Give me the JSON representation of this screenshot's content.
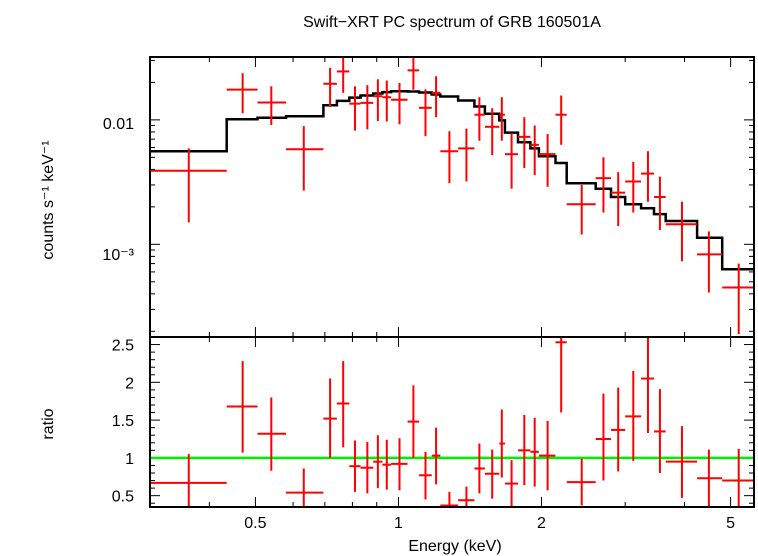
{
  "chart_data": [
    {
      "type": "scatter",
      "title": "Swift−XRT PC spectrum of GRB 160501A",
      "ylabel": "counts s⁻¹ keV⁻¹",
      "xlabel": "",
      "xscale": "log",
      "yscale": "log",
      "xlim": [
        0.3,
        5.6
      ],
      "ylim": [
        0.00018,
        0.032
      ],
      "ytick_labels": [
        "0.01",
        "10⁻³"
      ],
      "series": [
        {
          "kind": "data",
          "color": "#ff0000",
          "points": [
            {
              "x": 0.362,
              "xlo": 0.3,
              "xhi": 0.435,
              "y": 0.0039,
              "ylo": 0.0015,
              "yhi": 0.0059
            },
            {
              "x": 0.47,
              "xlo": 0.435,
              "xhi": 0.505,
              "y": 0.0175,
              "ylo": 0.0113,
              "yhi": 0.0237
            },
            {
              "x": 0.54,
              "xlo": 0.505,
              "xhi": 0.58,
              "y": 0.0138,
              "ylo": 0.0091,
              "yhi": 0.0186
            },
            {
              "x": 0.632,
              "xlo": 0.58,
              "xhi": 0.695,
              "y": 0.0058,
              "ylo": 0.0027,
              "yhi": 0.0089
            },
            {
              "x": 0.718,
              "xlo": 0.695,
              "xhi": 0.742,
              "y": 0.0195,
              "ylo": 0.0127,
              "yhi": 0.0262
            },
            {
              "x": 0.765,
              "xlo": 0.742,
              "xhi": 0.788,
              "y": 0.0245,
              "ylo": 0.0165,
              "yhi": 0.032
            },
            {
              "x": 0.81,
              "xlo": 0.788,
              "xhi": 0.832,
              "y": 0.0135,
              "ylo": 0.0082,
              "yhi": 0.0186
            },
            {
              "x": 0.86,
              "xlo": 0.832,
              "xhi": 0.885,
              "y": 0.0137,
              "ylo": 0.0084,
              "yhi": 0.019
            },
            {
              "x": 0.905,
              "xlo": 0.885,
              "xhi": 0.925,
              "y": 0.0155,
              "ylo": 0.0098,
              "yhi": 0.0212
            },
            {
              "x": 0.945,
              "xlo": 0.925,
              "xhi": 0.965,
              "y": 0.0152,
              "ylo": 0.0097,
              "yhi": 0.0207
            },
            {
              "x": 1.005,
              "xlo": 0.965,
              "xhi": 1.045,
              "y": 0.0145,
              "ylo": 0.0092,
              "yhi": 0.0198
            },
            {
              "x": 1.075,
              "xlo": 1.045,
              "xhi": 1.105,
              "y": 0.025,
              "ylo": 0.0175,
              "yhi": 0.0325
            },
            {
              "x": 1.14,
              "xlo": 1.105,
              "xhi": 1.175,
              "y": 0.0125,
              "ylo": 0.0074,
              "yhi": 0.0176
            },
            {
              "x": 1.2,
              "xlo": 1.175,
              "xhi": 1.225,
              "y": 0.0165,
              "ylo": 0.0105,
              "yhi": 0.0224
            },
            {
              "x": 1.28,
              "xlo": 1.225,
              "xhi": 1.335,
              "y": 0.0056,
              "ylo": 0.0031,
              "yhi": 0.0081
            },
            {
              "x": 1.39,
              "xlo": 1.335,
              "xhi": 1.445,
              "y": 0.0059,
              "ylo": 0.0032,
              "yhi": 0.0085
            },
            {
              "x": 1.48,
              "xlo": 1.445,
              "xhi": 1.52,
              "y": 0.011,
              "ylo": 0.0068,
              "yhi": 0.0152
            },
            {
              "x": 1.575,
              "xlo": 1.52,
              "xhi": 1.63,
              "y": 0.0088,
              "ylo": 0.0052,
              "yhi": 0.0124
            },
            {
              "x": 1.65,
              "xlo": 1.63,
              "xhi": 1.675,
              "y": 0.011,
              "ylo": 0.0068,
              "yhi": 0.0152
            },
            {
              "x": 1.73,
              "xlo": 1.675,
              "xhi": 1.785,
              "y": 0.0053,
              "ylo": 0.0028,
              "yhi": 0.0078
            },
            {
              "x": 1.84,
              "xlo": 1.785,
              "xhi": 1.895,
              "y": 0.0073,
              "ylo": 0.0041,
              "yhi": 0.0105
            },
            {
              "x": 1.935,
              "xlo": 1.895,
              "xhi": 1.975,
              "y": 0.0063,
              "ylo": 0.0036,
              "yhi": 0.009
            },
            {
              "x": 2.06,
              "xlo": 1.975,
              "xhi": 2.14,
              "y": 0.0053,
              "ylo": 0.0029,
              "yhi": 0.0077
            },
            {
              "x": 2.2,
              "xlo": 2.14,
              "xhi": 2.26,
              "y": 0.011,
              "ylo": 0.0063,
              "yhi": 0.0157
            },
            {
              "x": 2.43,
              "xlo": 2.26,
              "xhi": 2.6,
              "y": 0.0021,
              "ylo": 0.0012,
              "yhi": 0.003
            },
            {
              "x": 2.7,
              "xlo": 2.6,
              "xhi": 2.8,
              "y": 0.0034,
              "ylo": 0.0018,
              "yhi": 0.005
            },
            {
              "x": 2.9,
              "xlo": 2.8,
              "xhi": 3.0,
              "y": 0.0026,
              "ylo": 0.0014,
              "yhi": 0.0038
            },
            {
              "x": 3.12,
              "xlo": 3.0,
              "xhi": 3.24,
              "y": 0.0032,
              "ylo": 0.0018,
              "yhi": 0.0046
            },
            {
              "x": 3.35,
              "xlo": 3.24,
              "xhi": 3.45,
              "y": 0.0037,
              "ylo": 0.0022,
              "yhi": 0.0056
            },
            {
              "x": 3.55,
              "xlo": 3.45,
              "xhi": 3.65,
              "y": 0.0024,
              "ylo": 0.0013,
              "yhi": 0.0035
            },
            {
              "x": 3.95,
              "xlo": 3.65,
              "xhi": 4.25,
              "y": 0.00145,
              "ylo": 0.00073,
              "yhi": 0.0022
            },
            {
              "x": 4.5,
              "xlo": 4.25,
              "xhi": 4.8,
              "y": 0.00083,
              "ylo": 0.00041,
              "yhi": 0.00127
            },
            {
              "x": 5.2,
              "xlo": 4.8,
              "xhi": 5.6,
              "y": 0.00045,
              "ylo": 0.00019,
              "yhi": 0.0007
            }
          ]
        },
        {
          "kind": "model",
          "color": "#000000",
          "steps": [
            {
              "xlo": 0.3,
              "xhi": 0.435,
              "y": 0.0056
            },
            {
              "xlo": 0.435,
              "xhi": 0.505,
              "y": 0.0101
            },
            {
              "xlo": 0.505,
              "xhi": 0.58,
              "y": 0.0104
            },
            {
              "xlo": 0.58,
              "xhi": 0.695,
              "y": 0.0107
            },
            {
              "xlo": 0.695,
              "xhi": 0.742,
              "y": 0.0131
            },
            {
              "xlo": 0.742,
              "xhi": 0.788,
              "y": 0.0142
            },
            {
              "xlo": 0.788,
              "xhi": 0.832,
              "y": 0.0151
            },
            {
              "xlo": 0.832,
              "xhi": 0.885,
              "y": 0.0157
            },
            {
              "xlo": 0.885,
              "xhi": 0.925,
              "y": 0.0163
            },
            {
              "xlo": 0.925,
              "xhi": 0.965,
              "y": 0.0167
            },
            {
              "xlo": 0.965,
              "xhi": 1.045,
              "y": 0.017
            },
            {
              "xlo": 1.045,
              "xhi": 1.105,
              "y": 0.0169
            },
            {
              "xlo": 1.105,
              "xhi": 1.175,
              "y": 0.0166
            },
            {
              "xlo": 1.175,
              "xhi": 1.225,
              "y": 0.016
            },
            {
              "xlo": 1.225,
              "xhi": 1.335,
              "y": 0.0154
            },
            {
              "xlo": 1.335,
              "xhi": 1.445,
              "y": 0.0143
            },
            {
              "xlo": 1.445,
              "xhi": 1.52,
              "y": 0.0128
            },
            {
              "xlo": 1.52,
              "xhi": 1.63,
              "y": 0.0112
            },
            {
              "xlo": 1.63,
              "xhi": 1.675,
              "y": 0.0099
            },
            {
              "xlo": 1.675,
              "xhi": 1.785,
              "y": 0.0079
            },
            {
              "xlo": 1.785,
              "xhi": 1.895,
              "y": 0.0066
            },
            {
              "xlo": 1.895,
              "xhi": 1.975,
              "y": 0.0059
            },
            {
              "xlo": 1.975,
              "xhi": 2.14,
              "y": 0.0051
            },
            {
              "xlo": 2.14,
              "xhi": 2.26,
              "y": 0.0045
            },
            {
              "xlo": 2.26,
              "xhi": 2.6,
              "y": 0.0031
            },
            {
              "xlo": 2.6,
              "xhi": 2.8,
              "y": 0.0028
            },
            {
              "xlo": 2.8,
              "xhi": 3.0,
              "y": 0.0024
            },
            {
              "xlo": 3.0,
              "xhi": 3.24,
              "y": 0.0021
            },
            {
              "xlo": 3.24,
              "xhi": 3.45,
              "y": 0.00195
            },
            {
              "xlo": 3.45,
              "xhi": 3.65,
              "y": 0.00175
            },
            {
              "xlo": 3.65,
              "xhi": 4.25,
              "y": 0.00154
            },
            {
              "xlo": 4.25,
              "xhi": 4.8,
              "y": 0.00113
            },
            {
              "xlo": 4.8,
              "xhi": 5.6,
              "y": 0.00063
            }
          ]
        }
      ]
    },
    {
      "type": "scatter",
      "title": "",
      "ylabel": "ratio",
      "xlabel": "Energy (keV)",
      "xscale": "log",
      "yscale": "linear",
      "xlim": [
        0.3,
        5.6
      ],
      "ylim": [
        0.35,
        2.6
      ],
      "x_ticks": [
        0.5,
        1,
        2,
        5
      ],
      "x_tick_labels": [
        "0.5",
        "1",
        "2",
        "5"
      ],
      "y_ticks": [
        0.5,
        1,
        1.5,
        2,
        2.5
      ],
      "y_tick_labels": [
        "0.5",
        "1",
        "1.5",
        "2",
        "2.5"
      ],
      "reference_line": {
        "y": 1,
        "color": "#00ee00"
      },
      "series": [
        {
          "kind": "data",
          "color": "#ff0000",
          "points": [
            {
              "x": 0.362,
              "xlo": 0.3,
              "xhi": 0.435,
              "y": 0.67,
              "ylo": 0.35,
              "yhi": 1.05
            },
            {
              "x": 0.47,
              "xlo": 0.435,
              "xhi": 0.505,
              "y": 1.68,
              "ylo": 1.07,
              "yhi": 2.28
            },
            {
              "x": 0.54,
              "xlo": 0.505,
              "xhi": 0.58,
              "y": 1.32,
              "ylo": 0.83,
              "yhi": 1.8
            },
            {
              "x": 0.632,
              "xlo": 0.58,
              "xhi": 0.695,
              "y": 0.54,
              "ylo": 0.35,
              "yhi": 0.86
            },
            {
              "x": 0.718,
              "xlo": 0.695,
              "xhi": 0.742,
              "y": 1.52,
              "ylo": 1.0,
              "yhi": 2.05
            },
            {
              "x": 0.765,
              "xlo": 0.742,
              "xhi": 0.788,
              "y": 1.72,
              "ylo": 1.14,
              "yhi": 2.28
            },
            {
              "x": 0.81,
              "xlo": 0.788,
              "xhi": 0.832,
              "y": 0.89,
              "ylo": 0.55,
              "yhi": 1.23
            },
            {
              "x": 0.86,
              "xlo": 0.832,
              "xhi": 0.885,
              "y": 0.87,
              "ylo": 0.53,
              "yhi": 1.21
            },
            {
              "x": 0.905,
              "xlo": 0.885,
              "xhi": 0.925,
              "y": 0.95,
              "ylo": 0.6,
              "yhi": 1.3
            },
            {
              "x": 0.945,
              "xlo": 0.925,
              "xhi": 0.965,
              "y": 0.91,
              "ylo": 0.58,
              "yhi": 1.24
            },
            {
              "x": 1.005,
              "xlo": 0.965,
              "xhi": 1.045,
              "y": 0.92,
              "ylo": 0.57,
              "yhi": 1.26
            },
            {
              "x": 1.075,
              "xlo": 1.045,
              "xhi": 1.105,
              "y": 1.48,
              "ylo": 1.0,
              "yhi": 1.96
            },
            {
              "x": 1.14,
              "xlo": 1.105,
              "xhi": 1.175,
              "y": 0.77,
              "ylo": 0.45,
              "yhi": 1.08
            },
            {
              "x": 1.2,
              "xlo": 1.175,
              "xhi": 1.225,
              "y": 1.03,
              "ylo": 0.65,
              "yhi": 1.4
            },
            {
              "x": 1.28,
              "xlo": 1.225,
              "xhi": 1.335,
              "y": 0.37,
              "ylo": 0.35,
              "yhi": 0.55
            },
            {
              "x": 1.39,
              "xlo": 1.335,
              "xhi": 1.445,
              "y": 0.44,
              "ylo": 0.35,
              "yhi": 0.62
            },
            {
              "x": 1.48,
              "xlo": 1.445,
              "xhi": 1.52,
              "y": 0.86,
              "ylo": 0.53,
              "yhi": 1.19
            },
            {
              "x": 1.575,
              "xlo": 1.52,
              "xhi": 1.63,
              "y": 0.79,
              "ylo": 0.46,
              "yhi": 1.11
            },
            {
              "x": 1.65,
              "xlo": 1.63,
              "xhi": 1.675,
              "y": 1.19,
              "ylo": 0.74,
              "yhi": 1.64
            },
            {
              "x": 1.73,
              "xlo": 1.675,
              "xhi": 1.785,
              "y": 0.66,
              "ylo": 0.36,
              "yhi": 0.97
            },
            {
              "x": 1.84,
              "xlo": 1.785,
              "xhi": 1.895,
              "y": 1.1,
              "ylo": 0.64,
              "yhi": 1.57
            },
            {
              "x": 1.935,
              "xlo": 1.895,
              "xhi": 1.975,
              "y": 1.08,
              "ylo": 0.62,
              "yhi": 1.53
            },
            {
              "x": 2.06,
              "xlo": 1.975,
              "xhi": 2.14,
              "y": 1.03,
              "ylo": 0.57,
              "yhi": 1.49
            },
            {
              "x": 2.2,
              "xlo": 2.14,
              "xhi": 2.26,
              "y": 2.53,
              "ylo": 1.6,
              "yhi": 2.6
            },
            {
              "x": 2.43,
              "xlo": 2.26,
              "xhi": 2.6,
              "y": 0.68,
              "ylo": 0.37,
              "yhi": 0.99
            },
            {
              "x": 2.7,
              "xlo": 2.6,
              "xhi": 2.8,
              "y": 1.25,
              "ylo": 0.7,
              "yhi": 1.85
            },
            {
              "x": 2.9,
              "xlo": 2.8,
              "xhi": 3.0,
              "y": 1.37,
              "ylo": 0.82,
              "yhi": 1.93
            },
            {
              "x": 3.12,
              "xlo": 3.0,
              "xhi": 3.24,
              "y": 1.55,
              "ylo": 0.96,
              "yhi": 2.15
            },
            {
              "x": 3.35,
              "xlo": 3.24,
              "xhi": 3.45,
              "y": 2.05,
              "ylo": 1.33,
              "yhi": 2.6
            },
            {
              "x": 3.55,
              "xlo": 3.45,
              "xhi": 3.65,
              "y": 1.35,
              "ylo": 0.8,
              "yhi": 1.91
            },
            {
              "x": 3.95,
              "xlo": 3.65,
              "xhi": 4.25,
              "y": 0.95,
              "ylo": 0.47,
              "yhi": 1.42
            },
            {
              "x": 4.5,
              "xlo": 4.25,
              "xhi": 4.8,
              "y": 0.73,
              "ylo": 0.36,
              "yhi": 1.11
            },
            {
              "x": 5.2,
              "xlo": 4.8,
              "xhi": 5.6,
              "y": 0.7,
              "ylo": 0.35,
              "yhi": 1.12
            }
          ]
        }
      ]
    }
  ]
}
